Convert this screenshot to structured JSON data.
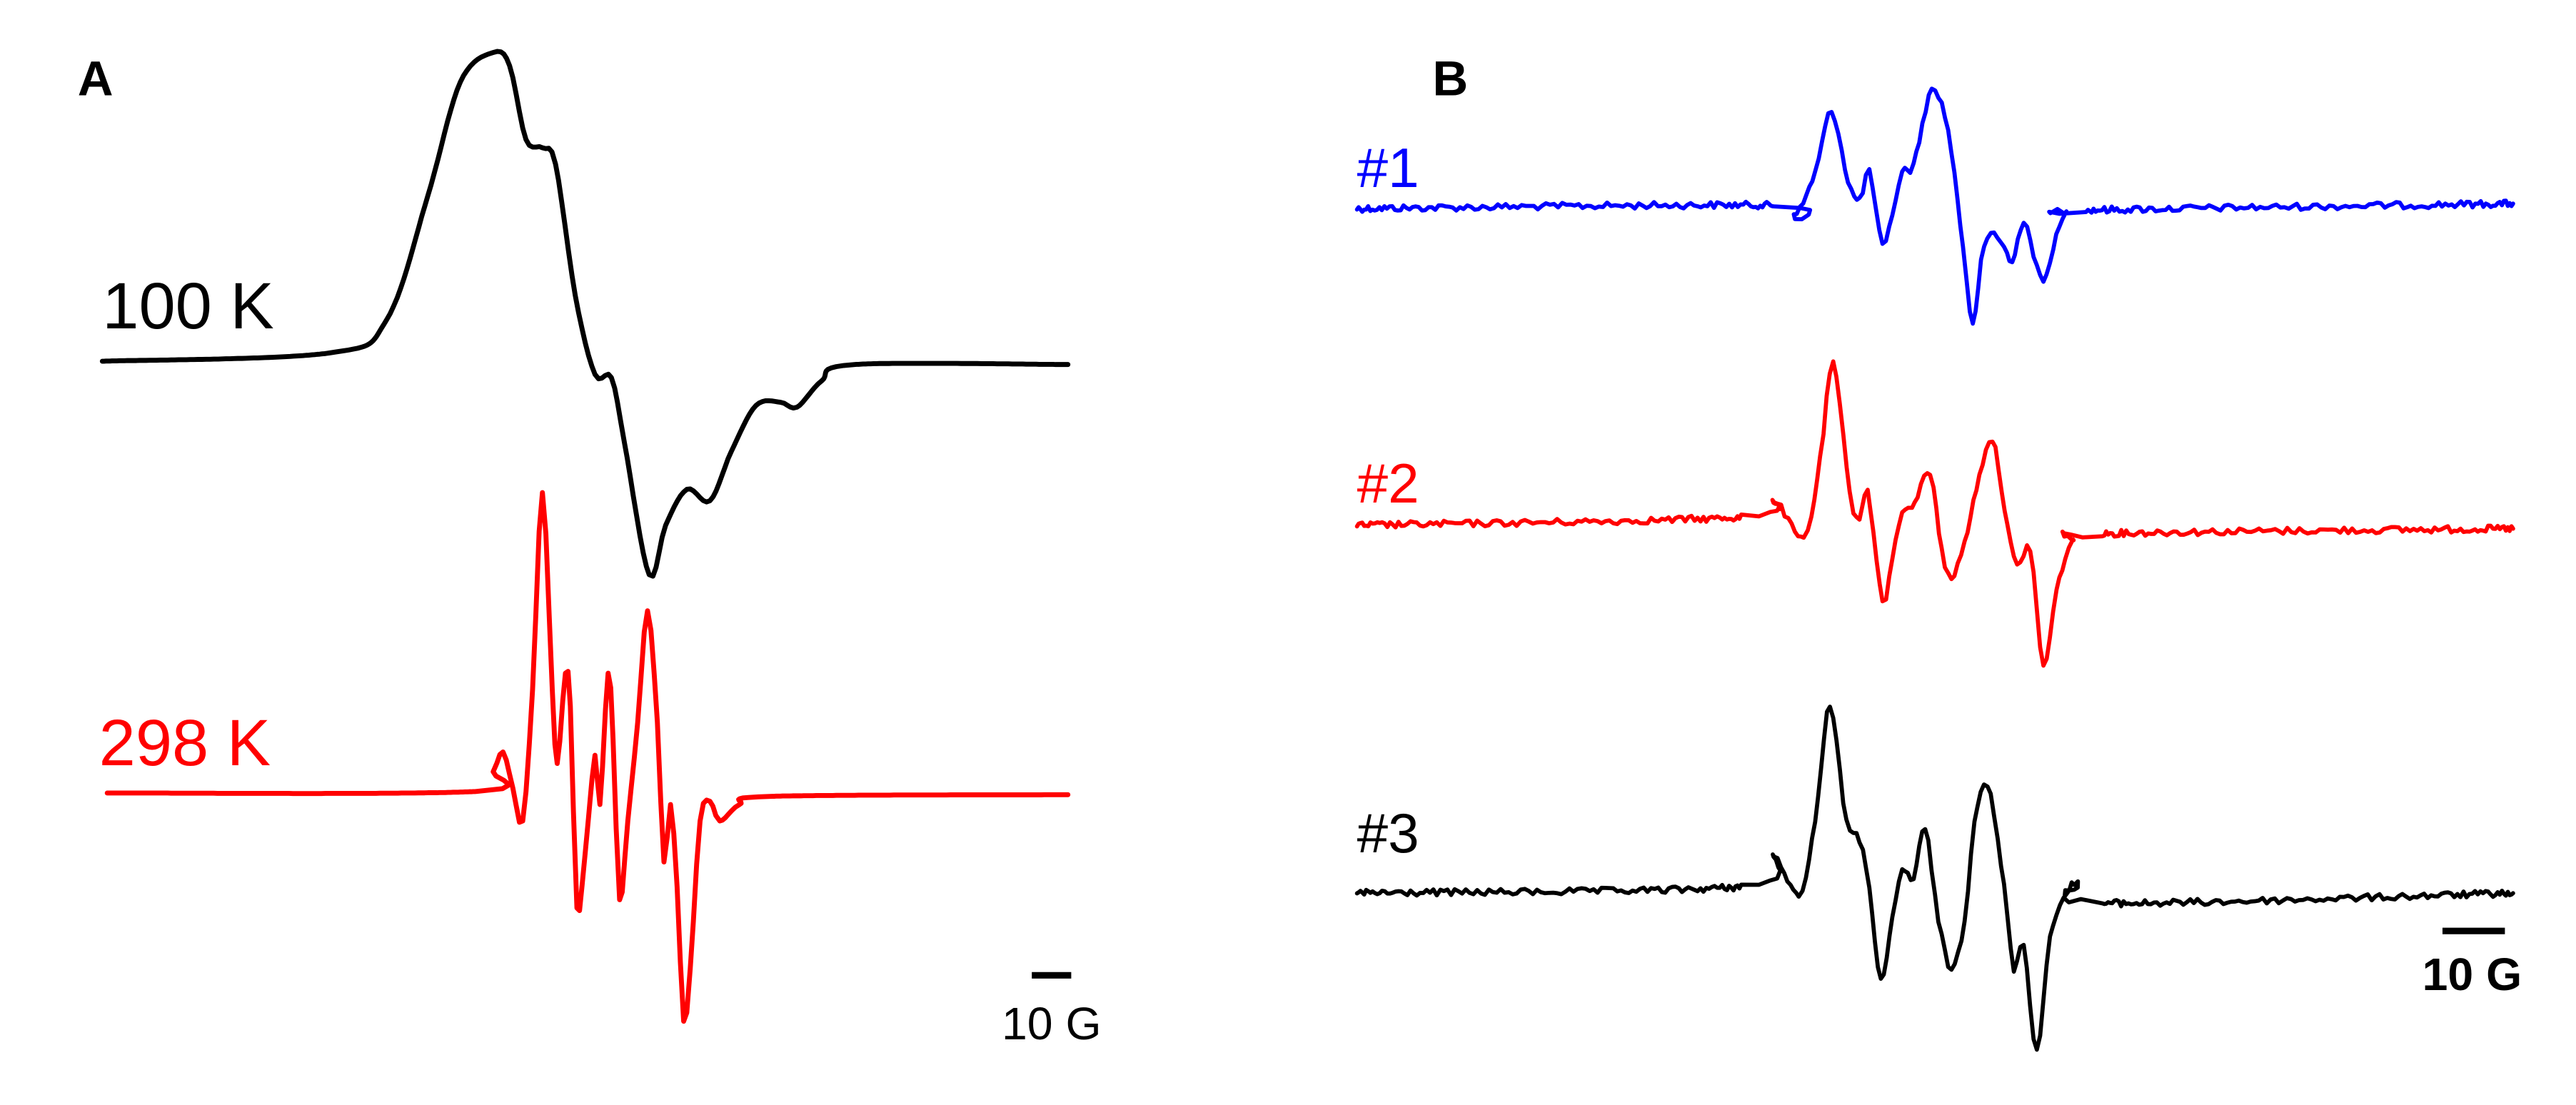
{
  "panels": [
    {
      "label": "A",
      "scale_bar": "10 G",
      "traces": [
        {
          "label": "100 K",
          "color": "#000000"
        },
        {
          "label": "298 K",
          "color": "#ff0000"
        }
      ]
    },
    {
      "label": "B",
      "scale_bar": "10 G",
      "traces": [
        {
          "label": "#1",
          "color": "#0000ff"
        },
        {
          "label": "#2",
          "color": "#ff0000"
        },
        {
          "label": "#3",
          "color": "#000000"
        }
      ]
    }
  ]
}
